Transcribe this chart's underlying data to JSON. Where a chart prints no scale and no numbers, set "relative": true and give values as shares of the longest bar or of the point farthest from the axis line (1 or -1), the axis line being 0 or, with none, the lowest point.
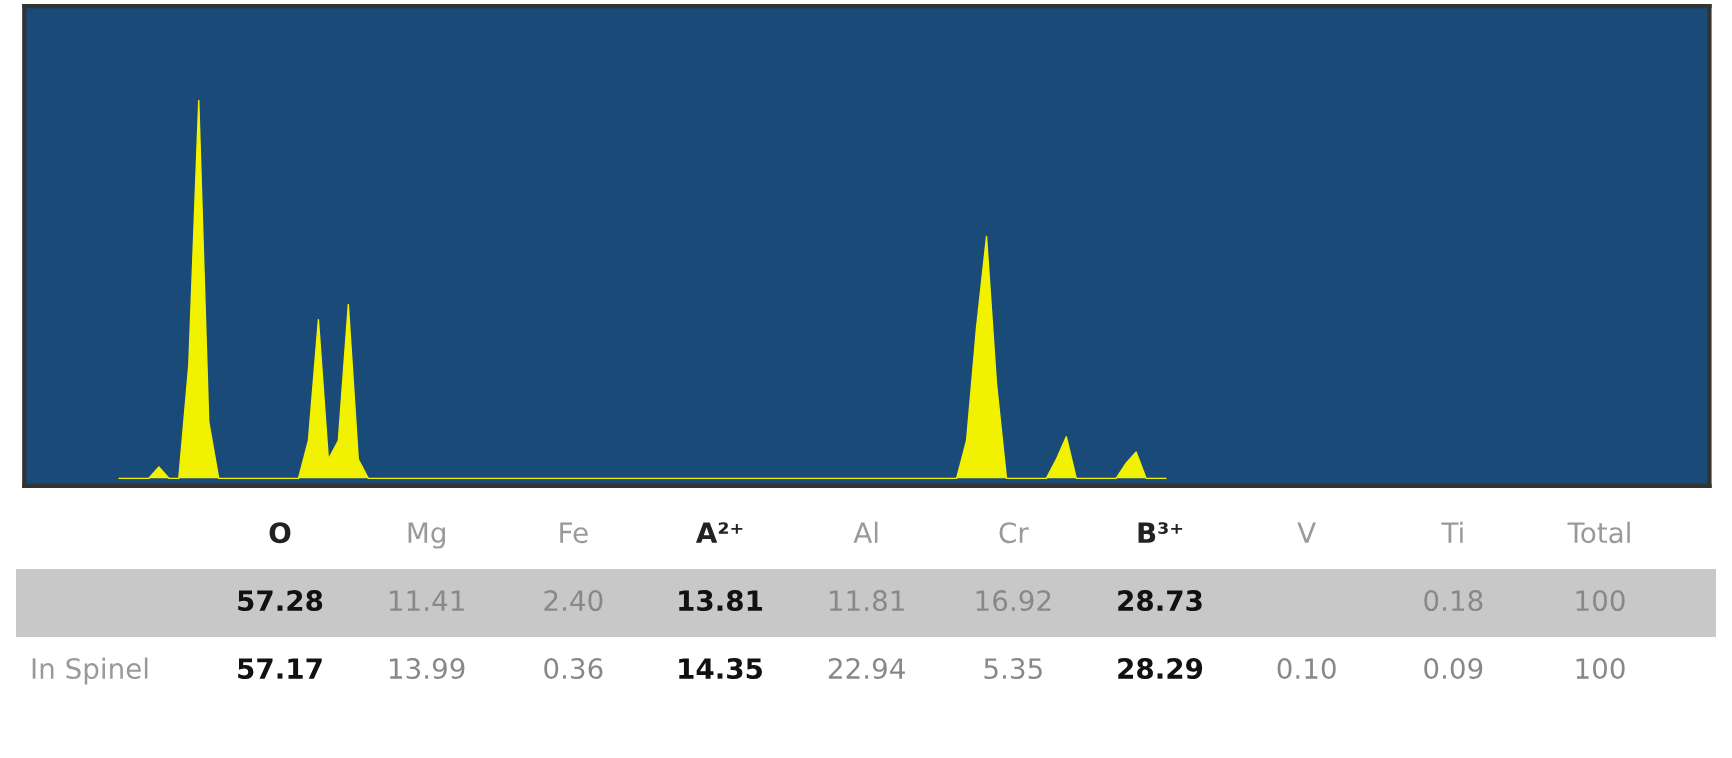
{
  "chart_data": [
    {
      "type": "area",
      "relative": true,
      "categories": [
        null,
        null,
        null,
        null,
        null,
        null,
        null,
        null,
        null,
        null,
        null,
        null,
        null,
        null,
        null,
        null,
        null,
        null,
        null,
        null,
        null,
        null,
        null,
        null,
        null,
        null,
        null,
        null,
        null,
        null,
        null,
        null,
        null,
        null,
        null,
        null,
        null,
        null,
        null,
        null,
        null,
        null,
        null,
        null,
        null,
        null,
        null,
        null,
        null,
        null,
        null,
        null,
        null,
        null,
        null,
        null,
        null,
        null,
        null,
        null,
        null,
        null,
        null,
        null,
        null,
        null,
        null,
        null,
        null,
        null,
        null,
        null,
        null,
        null,
        null,
        null,
        null,
        null,
        null,
        null,
        null,
        null,
        null,
        null,
        null,
        null,
        null,
        null,
        null,
        null,
        null,
        null,
        null,
        null,
        null,
        null,
        null,
        null,
        null,
        null,
        null,
        null,
        null,
        null,
        null,
        null,
        null,
        null,
        null,
        null,
        null,
        null,
        null,
        null,
        null,
        null,
        null,
        null,
        null,
        null,
        null,
        null,
        null,
        null,
        null,
        null,
        null,
        null,
        null,
        null,
        null,
        null,
        null,
        null,
        null,
        null,
        null,
        null,
        null,
        null,
        null,
        null,
        null,
        null,
        null,
        null,
        null,
        null,
        null,
        null,
        null,
        null,
        null,
        null,
        null,
        null,
        null,
        null,
        null,
        null,
        null,
        null,
        null,
        null,
        null,
        null,
        null,
        null,
        null
      ],
      "series": [
        {
          "color": "#f2f200",
          "values": [
            null,
            null,
            null,
            null,
            null,
            null,
            null,
            null,
            null,
            0,
            0,
            0,
            0,
            0.03,
            0,
            0,
            0.3,
            1.0,
            0.15,
            0,
            0,
            0,
            0,
            0,
            0,
            0,
            0,
            0,
            0.1,
            0.42,
            0.05,
            0.1,
            0.46,
            0.05,
            0,
            0,
            0,
            0,
            0,
            0,
            0,
            0,
            0,
            0,
            0,
            0,
            0,
            0,
            0,
            0,
            0,
            0,
            0,
            0,
            0,
            0,
            0,
            0,
            0,
            0,
            0,
            0,
            0,
            0,
            0,
            0,
            0,
            0,
            0,
            0,
            0,
            0,
            0,
            0,
            0,
            0,
            0,
            0,
            0,
            0,
            0,
            0,
            0,
            0,
            0,
            0,
            0,
            0,
            0,
            0,
            0,
            0,
            0,
            0,
            0.1,
            0.4,
            0.64,
            0.25,
            0,
            0,
            0,
            0,
            0,
            0.05,
            0.11,
            0,
            0,
            0,
            0,
            0,
            0.04,
            0.07,
            0,
            0,
            0,
            null,
            null,
            null,
            null,
            null,
            null,
            null,
            null,
            null,
            null,
            null,
            null,
            null,
            null,
            null,
            null,
            null,
            null,
            null,
            null,
            null,
            null,
            null,
            null,
            null,
            null,
            null,
            null,
            null,
            null,
            null,
            null,
            null,
            null,
            null,
            null,
            null,
            null,
            null,
            null,
            null,
            null,
            null,
            null,
            null,
            null,
            null,
            null,
            null,
            null,
            null,
            null,
            null,
            null
          ]
        }
      ]
    },
    {
      "type": "other",
      "categories": [
        "O",
        "Mg",
        "Fe",
        "A²⁺",
        "Al",
        "Cr",
        "B³⁺",
        "V",
        "Ti",
        "Total"
      ],
      "y_categories": [
        null,
        "In Spinel"
      ],
      "cell_labels": [
        [
          "57.28",
          "11.41",
          "2.40",
          "13.81",
          "11.81",
          "16.92",
          "28.73",
          null,
          "0.18",
          "100"
        ],
        [
          "57.17",
          "13.99",
          "0.36",
          "14.35",
          "22.94",
          "5.35",
          "28.29",
          "0.10",
          "0.09",
          "100"
        ]
      ]
    }
  ]
}
